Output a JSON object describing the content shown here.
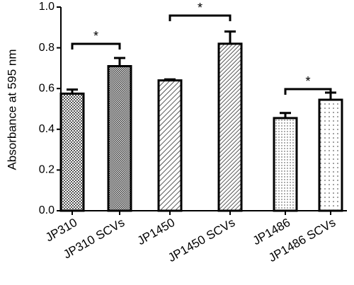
{
  "chart_data": {
    "type": "bar",
    "y_label": "Absorbance at 595 nm",
    "categories": [
      "JP310",
      "JP310 SCVs",
      "JP1450",
      "JP1450 SCVs",
      "JP1486",
      "JP1486 SCVs"
    ],
    "values": [
      0.575,
      0.71,
      0.64,
      0.82,
      0.455,
      0.545
    ],
    "errors": [
      0.02,
      0.04,
      0.005,
      0.06,
      0.025,
      0.035
    ],
    "patterns": [
      "checker",
      "checker-dense",
      "diagonal",
      "diagonal-dense",
      "dots",
      "dots-sparse"
    ],
    "color": "#000000",
    "ylim": [
      0,
      1.0
    ],
    "yticks": [
      {
        "value": 0,
        "label": "0.0"
      },
      {
        "value": 0.2,
        "label": "0.2"
      },
      {
        "value": 0.4,
        "label": "0.4"
      },
      {
        "value": 0.6,
        "label": "0.6"
      },
      {
        "value": 0.8,
        "label": "0.8"
      },
      {
        "value": 1.0,
        "label": "1.0"
      }
    ],
    "annotations": [
      {
        "text": "*",
        "between": [
          0,
          1
        ]
      },
      {
        "text": "*",
        "between": [
          2,
          3
        ]
      },
      {
        "text": "*",
        "between": [
          4,
          5
        ]
      }
    ]
  }
}
